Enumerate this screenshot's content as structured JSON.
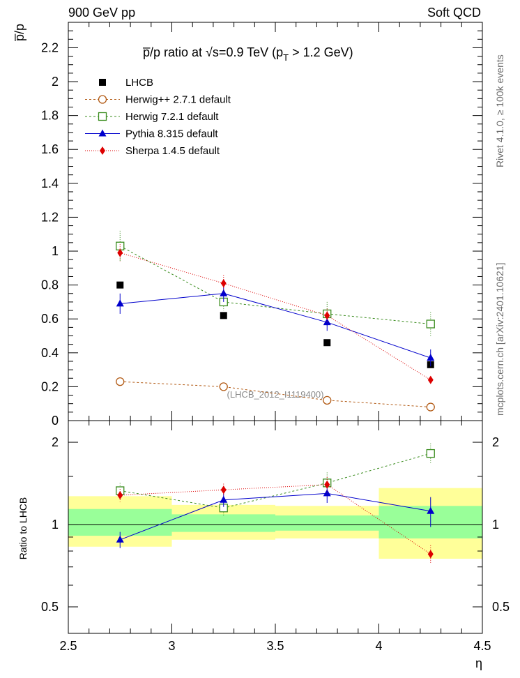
{
  "header": {
    "left": "900 GeV pp",
    "right": "Soft QCD"
  },
  "side_labels": {
    "rivet": "Rivet 4.1.0, ≥ 100k events",
    "mcplots": "mcplots.cern.ch [arXiv:2401.10621]"
  },
  "chart_data": [
    {
      "type": "line",
      "title": "p̅/p ratio at  √s=0.9 TeV (p",
      "title_sub": "T",
      "title_tail": " > 1.2 GeV)",
      "xlabel": "η",
      "ylabel": "p̅/p",
      "xlim": [
        2.5,
        4.5
      ],
      "ylim": [
        0,
        2.35
      ],
      "yticks": [
        0.2,
        0.4,
        0.6,
        0.8,
        1,
        1.2,
        1.4,
        1.6,
        1.8,
        2,
        2.2
      ],
      "ytick_labels": [
        "0.2",
        "0.4",
        "0.6",
        "0.8",
        "1",
        "1.2",
        "1.4",
        "1.6",
        "1.8",
        "2",
        "2.2"
      ],
      "ytick_zero": "0",
      "x": [
        2.75,
        3.25,
        3.75,
        4.25
      ],
      "watermark": "(LHCB_2012_I1119400)",
      "series": [
        {
          "name": "LHCB",
          "values": [
            0.8,
            0.62,
            0.46,
            0.33
          ],
          "errors": [
            0.005,
            0.005,
            0.005,
            0.005
          ],
          "color": "#000000",
          "marker": "square",
          "dash": "none"
        },
        {
          "name": "Herwig++ 2.7.1 default",
          "values": [
            0.23,
            0.2,
            0.12,
            0.08
          ],
          "errors": [
            0.005,
            0.005,
            0.005,
            0.005
          ],
          "color": "#b25a14",
          "marker": "circle-open",
          "dash": "3,3"
        },
        {
          "name": "Herwig 7.2.1 default",
          "values": [
            1.03,
            0.7,
            0.63,
            0.57
          ],
          "errors": [
            0.09,
            0.05,
            0.07,
            0.07
          ],
          "color": "#3a8c1e",
          "marker": "square-open",
          "dash": "3,3"
        },
        {
          "name": "Pythia 8.315 default",
          "values": [
            0.69,
            0.75,
            0.58,
            0.37
          ],
          "errors": [
            0.06,
            0.05,
            0.05,
            0.05
          ],
          "color": "#0000cc",
          "marker": "triangle",
          "dash": "none"
        },
        {
          "name": "Sherpa 1.4.5 default",
          "values": [
            0.99,
            0.81,
            0.62,
            0.24
          ],
          "errors": [
            0.05,
            0.05,
            0.04,
            0.02
          ],
          "color": "#dd0000",
          "marker": "diamond",
          "dash": "1,2"
        }
      ]
    },
    {
      "type": "line",
      "title": "",
      "xlabel": "η",
      "ylabel": "Ratio to LHCB",
      "xlim": [
        2.5,
        4.5
      ],
      "ylim": [
        0.4,
        2.4
      ],
      "log_y": true,
      "yticks": [
        0.5,
        1,
        2
      ],
      "ytick_labels": [
        "0.5",
        "1",
        "2"
      ],
      "xticks": [
        2.5,
        3,
        3.5,
        4,
        4.5
      ],
      "xtick_labels": [
        "2.5",
        "3",
        "3.5",
        "4",
        "4.5"
      ],
      "bins": [
        {
          "lo": 2.5,
          "hi": 3.0,
          "inner": [
            0.91,
            1.14
          ],
          "outer": [
            0.83,
            1.27
          ]
        },
        {
          "lo": 3.0,
          "hi": 3.5,
          "inner": [
            0.94,
            1.09
          ],
          "outer": [
            0.88,
            1.18
          ]
        },
        {
          "lo": 3.5,
          "hi": 4.0,
          "inner": [
            0.95,
            1.08
          ],
          "outer": [
            0.89,
            1.17
          ]
        },
        {
          "lo": 4.0,
          "hi": 4.5,
          "inner": [
            0.89,
            1.17
          ],
          "outer": [
            0.75,
            1.36
          ]
        }
      ],
      "x": [
        2.75,
        3.25,
        3.75,
        4.25
      ],
      "series": [
        {
          "name": "Herwig 7.2.1 default",
          "values": [
            1.33,
            1.15,
            1.42,
            1.82
          ],
          "errors": [
            0.09,
            0.08,
            0.13,
            0.16
          ],
          "color": "#3a8c1e",
          "marker": "square-open",
          "dash": "3,3"
        },
        {
          "name": "Pythia 8.315 default",
          "values": [
            0.88,
            1.23,
            1.3,
            1.12
          ],
          "errors": [
            0.06,
            0.07,
            0.1,
            0.14
          ],
          "color": "#0000cc",
          "marker": "triangle",
          "dash": "none"
        },
        {
          "name": "Sherpa 1.4.5 default",
          "values": [
            1.28,
            1.34,
            1.4,
            0.78
          ],
          "errors": [
            0.07,
            0.07,
            0.09,
            0.06
          ],
          "color": "#dd0000",
          "marker": "diamond",
          "dash": "1,2"
        }
      ]
    }
  ]
}
